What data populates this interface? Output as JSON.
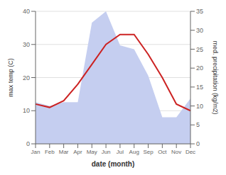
{
  "chart_data": {
    "type": "line",
    "categories": [
      "Jan",
      "Feb",
      "Mar",
      "Apr",
      "May",
      "Jun",
      "Jul",
      "Aug",
      "Sep",
      "Oct",
      "Nov",
      "Dec"
    ],
    "series": [
      {
        "type": "area",
        "axis": "y2",
        "color": "#c5cef0",
        "values": [
          11,
          10,
          11,
          11,
          32,
          35,
          26,
          25,
          18,
          7,
          7,
          12
        ]
      },
      {
        "type": "line",
        "color": "#cc2222",
        "values": [
          12,
          11,
          13,
          18,
          24,
          30,
          33,
          33,
          27,
          20,
          12,
          10
        ]
      }
    ],
    "xlabel": "date (month)",
    "ylabel": "max temp (C)",
    "y2label": "med. precipitation (kg/m2)",
    "ylim": [
      0,
      40
    ],
    "yticks": [
      0,
      10,
      20,
      30,
      40
    ],
    "y2lim": [
      0,
      35
    ],
    "y2ticks": [
      0,
      5,
      10,
      15,
      20,
      25,
      30,
      35
    ],
    "grid": true
  }
}
